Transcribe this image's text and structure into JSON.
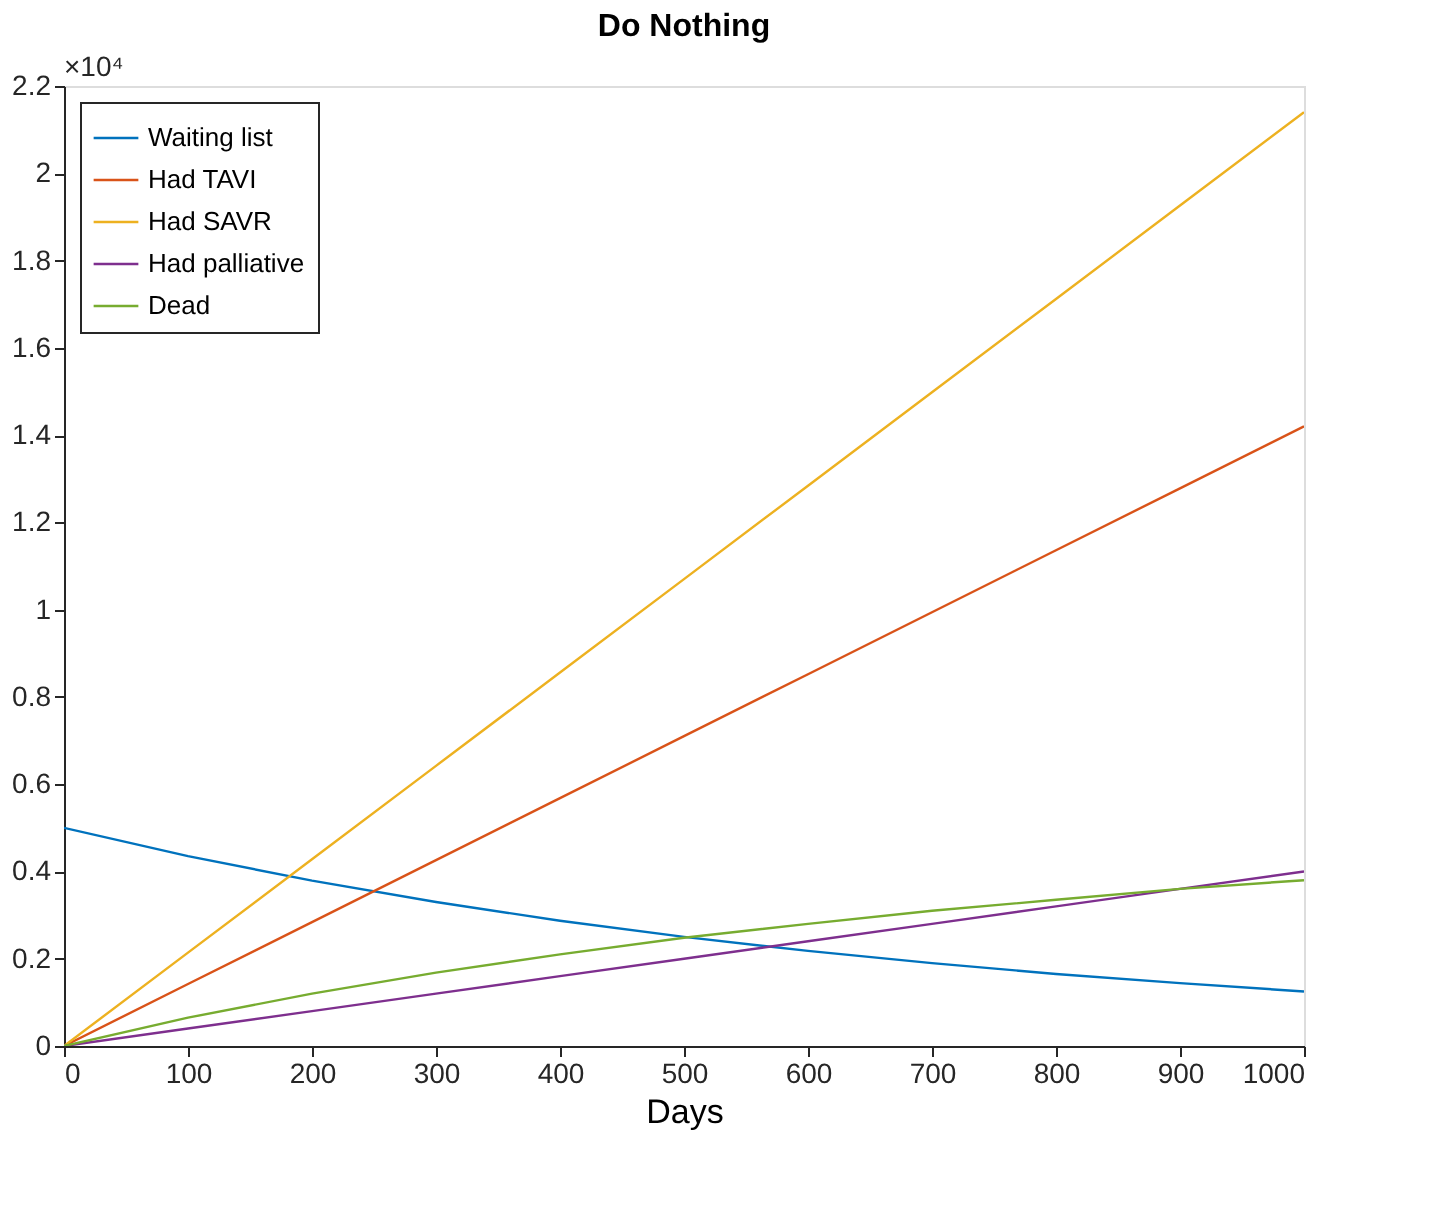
{
  "chart_data": {
    "type": "line",
    "title": "Do Nothing",
    "xlabel": "Days",
    "x": [
      0,
      100,
      200,
      300,
      400,
      500,
      600,
      700,
      800,
      900,
      1000
    ],
    "series": [
      {
        "name": "Waiting list",
        "color": "#0072bd",
        "values": [
          0.5,
          0.435,
          0.379,
          0.33,
          0.287,
          0.25,
          0.218,
          0.19,
          0.165,
          0.144,
          0.125
        ]
      },
      {
        "name": "Had TAVI",
        "color": "#d95319",
        "values": [
          0,
          0.142,
          0.284,
          0.426,
          0.568,
          0.71,
          0.852,
          0.994,
          1.136,
          1.278,
          1.42
        ]
      },
      {
        "name": "Had SAVR",
        "color": "#edb120",
        "values": [
          0,
          0.214,
          0.428,
          0.642,
          0.856,
          1.07,
          1.284,
          1.498,
          1.712,
          1.926,
          2.14
        ]
      },
      {
        "name": "Had palliative",
        "color": "#7e2f8e",
        "values": [
          0,
          0.04,
          0.08,
          0.12,
          0.16,
          0.2,
          0.24,
          0.28,
          0.32,
          0.36,
          0.4
        ]
      },
      {
        "name": "Dead",
        "color": "#77ac30",
        "values": [
          0,
          0.065,
          0.12,
          0.168,
          0.21,
          0.248,
          0.28,
          0.31,
          0.335,
          0.36,
          0.38
        ]
      }
    ],
    "xlim": [
      0,
      1000
    ],
    "xticks": [
      0,
      100,
      200,
      300,
      400,
      500,
      600,
      700,
      800,
      900,
      1000
    ],
    "ylim": [
      0,
      2.2
    ],
    "yticks": [
      0,
      0.2,
      0.4,
      0.6,
      0.8,
      1,
      1.2,
      1.4,
      1.6,
      1.8,
      2,
      2.2
    ],
    "annotations": [
      "×10⁴"
    ],
    "legend": "top left",
    "grid": false,
    "marker": "none",
    "line_style": "solid"
  }
}
